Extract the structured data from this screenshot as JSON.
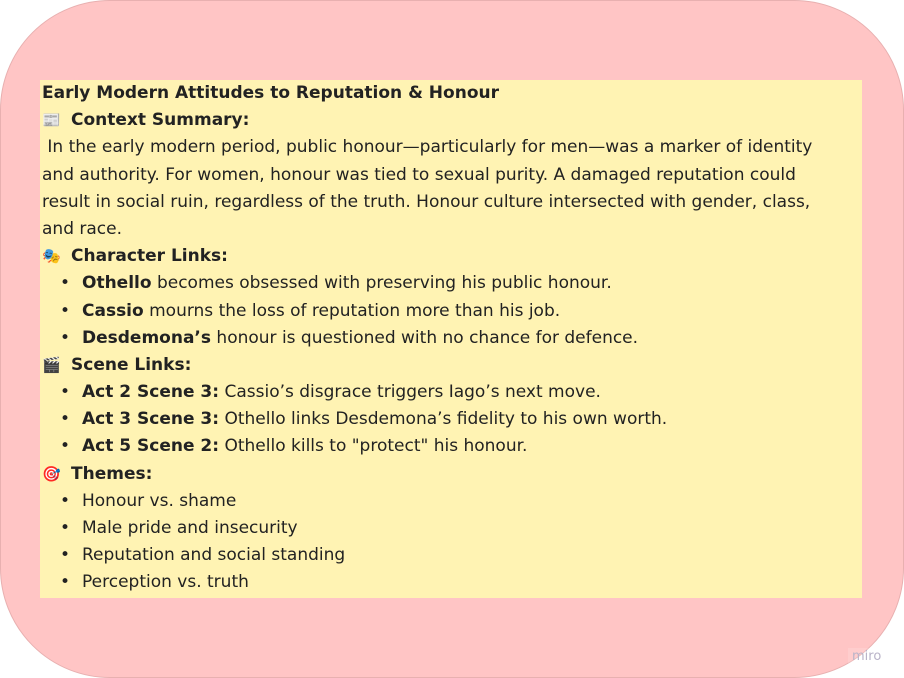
{
  "title": "Early Modern Attitudes to Reputation & Honour",
  "context": {
    "icon": "newspaper-icon",
    "heading": "Context Summary:",
    "lines": [
      " In the early modern period, public honour—particularly for men—was a marker of identity",
      "and authority. For women, honour was tied to sexual purity. A damaged reputation could",
      "result in social ruin, regardless of the truth. Honour culture intersected with gender, class,",
      "and race."
    ]
  },
  "characters": {
    "icon": "theater-masks-icon",
    "heading": "Character Links:",
    "items": [
      {
        "bold": "Othello",
        "text": " becomes obsessed with preserving his public honour."
      },
      {
        "bold": "Cassio",
        "text": " mourns the loss of reputation more than his job."
      },
      {
        "bold": "Desdemona’s",
        "text": " honour is questioned with no chance for defence."
      }
    ]
  },
  "scenes": {
    "icon": "clapper-board-icon",
    "heading": "Scene Links:",
    "items": [
      {
        "bold": "Act 2 Scene 3:",
        "text": " Cassio’s disgrace triggers Iago’s next move."
      },
      {
        "bold": "Act 3 Scene 3:",
        "text": " Othello links Desdemona’s fidelity to his own worth."
      },
      {
        "bold": "Act 5 Scene 2:",
        "text": " Othello kills to \"protect\" his honour."
      }
    ]
  },
  "themes": {
    "icon": "direct-hit-icon",
    "heading": "Themes:",
    "items": [
      "Honour vs. shame",
      "Male pride and insecurity",
      "Reputation and social standing",
      "Perception vs. truth"
    ]
  },
  "watermark": "miro",
  "colors": {
    "board": "#ffc5c5",
    "note": "#fff3b3"
  }
}
